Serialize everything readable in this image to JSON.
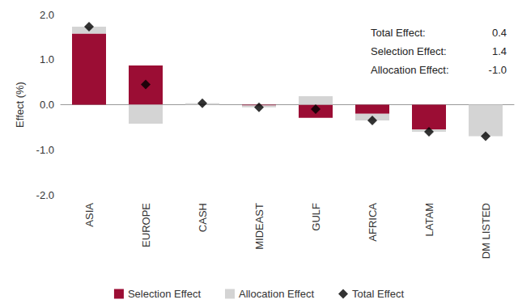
{
  "chart_data": {
    "type": "bar",
    "stacked": true,
    "categories": [
      "ASIA",
      "EUROPE",
      "CASH",
      "MIDEAST",
      "GULF",
      "AFRICA",
      "LATAM",
      "DM LISTED"
    ],
    "series": [
      {
        "name": "Selection Effect",
        "type": "bar",
        "color": "#9b0d34",
        "values": [
          1.58,
          0.87,
          0.0,
          -0.02,
          -0.29,
          -0.2,
          -0.55,
          0.0
        ]
      },
      {
        "name": "Allocation Effect",
        "type": "bar",
        "color": "#d4d4d4",
        "values": [
          0.15,
          -0.42,
          0.03,
          -0.04,
          0.19,
          -0.15,
          -0.05,
          -0.7
        ]
      },
      {
        "name": "Total Effect",
        "type": "scatter",
        "marker": "diamond",
        "color": "#000000",
        "values": [
          1.73,
          0.45,
          0.03,
          -0.06,
          -0.1,
          -0.35,
          -0.6,
          -0.7
        ]
      }
    ],
    "y_label": "Effect (%)",
    "ylim": [
      -2,
      2
    ],
    "yticks": [
      {
        "value": -2,
        "label": "-2.0"
      },
      {
        "value": -1,
        "label": "-1.0"
      },
      {
        "value": 0,
        "label": "0.0"
      },
      {
        "value": 1,
        "label": "1.0"
      },
      {
        "value": 2,
        "label": "2.0"
      }
    ],
    "grid": false,
    "legend": "bottom",
    "annotations": [
      {
        "text": "Total Effect:",
        "value": "0.4"
      },
      {
        "text": "Selection Effect:",
        "value": "1.4"
      },
      {
        "text": "Allocation Effect:",
        "value": "-1.0"
      }
    ]
  }
}
